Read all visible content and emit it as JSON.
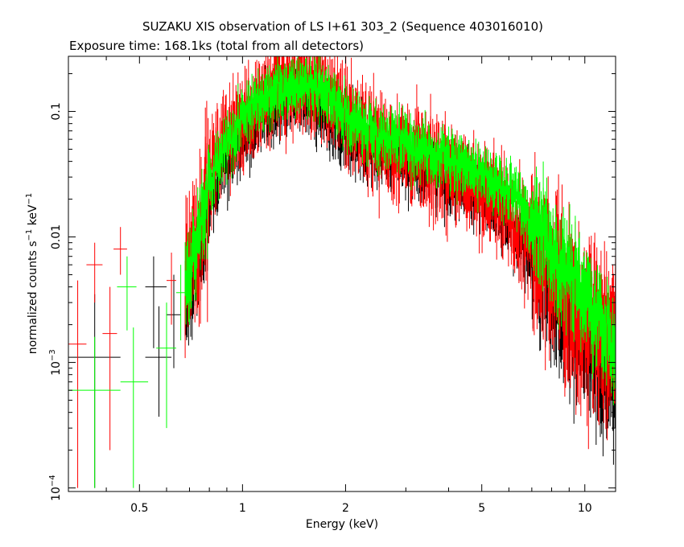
{
  "chart_data": {
    "type": "scatter",
    "title": "SUZAKU XIS observation of LS I+61 303_2 (Sequence 403016010)",
    "subtitle": "Exposure time: 168.1ks (total from all detectors)",
    "xlabel": "Energy (keV)",
    "ylabel_main": "normalized counts s",
    "ylabel_sup1": "−1",
    "ylabel_mid": " keV",
    "ylabel_sup2": "−1",
    "xscale": "log",
    "yscale": "log",
    "xlim": [
      0.31,
      12.3
    ],
    "ylim": [
      9.37e-05,
      0.275
    ],
    "x_ticks": [
      {
        "value": 0.5,
        "label": "0.5"
      },
      {
        "value": 1,
        "label": "1"
      },
      {
        "value": 2,
        "label": "2"
      },
      {
        "value": 5,
        "label": "5"
      },
      {
        "value": 10,
        "label": "10"
      }
    ],
    "y_ticks": [
      {
        "value": 0.1,
        "label": "0.1"
      },
      {
        "value": 0.01,
        "label": "0.01"
      },
      {
        "value": 0.001,
        "label_base": "10",
        "label_exp": "−3"
      },
      {
        "value": 0.0001,
        "label_base": "10",
        "label_exp": "−4"
      }
    ],
    "grid": false,
    "legend": "none",
    "series": [
      {
        "color": "#000000",
        "low_points": [
          {
            "x": 0.37,
            "xerr": [
              0.31,
              0.44
            ],
            "y": 0.0011,
            "yerr": [
              0.0001,
              0.0035
            ]
          },
          {
            "x": 0.55,
            "xerr": [
              0.52,
              0.6
            ],
            "y": 0.004,
            "yerr": [
              0.0013,
              0.007
            ]
          },
          {
            "x": 0.57,
            "xerr": [
              0.52,
              0.62
            ],
            "y": 0.0011,
            "yerr": [
              0.00037,
              0.0028
            ]
          },
          {
            "x": 0.63,
            "xerr": [
              0.6,
              0.66
            ],
            "y": 0.0024,
            "yerr": [
              0.0009,
              0.005
            ]
          }
        ],
        "profile": [
          [
            0.68,
            0.0028
          ],
          [
            0.72,
            0.0055
          ],
          [
            0.76,
            0.01
          ],
          [
            0.8,
            0.018
          ],
          [
            0.85,
            0.03
          ],
          [
            0.9,
            0.045
          ],
          [
            1.0,
            0.07
          ],
          [
            1.1,
            0.09
          ],
          [
            1.2,
            0.11
          ],
          [
            1.3,
            0.13
          ],
          [
            1.45,
            0.145
          ],
          [
            1.6,
            0.13
          ],
          [
            1.75,
            0.1
          ],
          [
            1.9,
            0.085
          ],
          [
            2.1,
            0.07
          ],
          [
            2.5,
            0.055
          ],
          [
            3.0,
            0.045
          ],
          [
            3.5,
            0.038
          ],
          [
            4.0,
            0.032
          ],
          [
            4.5,
            0.028
          ],
          [
            5.0,
            0.024
          ],
          [
            5.5,
            0.02
          ],
          [
            6.0,
            0.014
          ],
          [
            6.5,
            0.01
          ],
          [
            7.0,
            0.007
          ],
          [
            8.0,
            0.004
          ],
          [
            9.0,
            0.0025
          ],
          [
            10.0,
            0.0015
          ],
          [
            11.0,
            0.001
          ],
          [
            12.0,
            0.0008
          ]
        ],
        "scatter_dex": 0.14
      },
      {
        "color": "#ff0000",
        "low_points": [
          {
            "x": 0.33,
            "xerr": [
              0.31,
              0.35
            ],
            "y": 0.0014,
            "yerr": [
              0.0001,
              0.0045
            ]
          },
          {
            "x": 0.37,
            "xerr": [
              0.35,
              0.39
            ],
            "y": 0.006,
            "yerr": [
              0.003,
              0.009
            ]
          },
          {
            "x": 0.41,
            "xerr": [
              0.39,
              0.43
            ],
            "y": 0.0017,
            "yerr": [
              0.0002,
              0.004
            ]
          },
          {
            "x": 0.44,
            "xerr": [
              0.42,
              0.46
            ],
            "y": 0.008,
            "yerr": [
              0.005,
              0.012
            ]
          },
          {
            "x": 0.62,
            "xerr": [
              0.6,
              0.64
            ],
            "y": 0.0045,
            "yerr": [
              0.002,
              0.0075
            ]
          }
        ],
        "profile": [
          [
            0.68,
            0.005
          ],
          [
            0.72,
            0.01
          ],
          [
            0.76,
            0.018
          ],
          [
            0.8,
            0.03
          ],
          [
            0.85,
            0.05
          ],
          [
            0.9,
            0.07
          ],
          [
            1.0,
            0.1
          ],
          [
            1.1,
            0.13
          ],
          [
            1.2,
            0.16
          ],
          [
            1.3,
            0.18
          ],
          [
            1.45,
            0.19
          ],
          [
            1.6,
            0.185
          ],
          [
            1.75,
            0.17
          ],
          [
            1.9,
            0.14
          ],
          [
            2.1,
            0.095
          ],
          [
            2.5,
            0.07
          ],
          [
            3.0,
            0.055
          ],
          [
            3.5,
            0.045
          ],
          [
            4.0,
            0.038
          ],
          [
            4.5,
            0.032
          ],
          [
            5.0,
            0.027
          ],
          [
            5.5,
            0.022
          ],
          [
            6.0,
            0.018
          ],
          [
            6.5,
            0.013
          ],
          [
            7.0,
            0.01
          ],
          [
            8.0,
            0.007
          ],
          [
            9.0,
            0.0045
          ],
          [
            10.0,
            0.003
          ],
          [
            11.0,
            0.0025
          ],
          [
            12.0,
            0.002
          ]
        ],
        "scatter_dex": 0.2
      },
      {
        "color": "#00ff00",
        "low_points": [
          {
            "x": 0.37,
            "xerr": [
              0.31,
              0.44
            ],
            "y": 0.0006,
            "yerr": [
              0.0001,
              0.0016
            ]
          },
          {
            "x": 0.46,
            "xerr": [
              0.43,
              0.49
            ],
            "y": 0.004,
            "yerr": [
              0.0018,
              0.007
            ]
          },
          {
            "x": 0.48,
            "xerr": [
              0.44,
              0.53
            ],
            "y": 0.0007,
            "yerr": [
              0.0001,
              0.0019
            ]
          },
          {
            "x": 0.6,
            "xerr": [
              0.56,
              0.64
            ],
            "y": 0.0013,
            "yerr": [
              0.0003,
              0.003
            ]
          },
          {
            "x": 0.66,
            "xerr": [
              0.64,
              0.68
            ],
            "y": 0.0036,
            "yerr": [
              0.0015,
              0.006
            ]
          }
        ],
        "profile": [
          [
            0.68,
            0.004
          ],
          [
            0.72,
            0.008
          ],
          [
            0.76,
            0.014
          ],
          [
            0.8,
            0.025
          ],
          [
            0.85,
            0.04
          ],
          [
            0.9,
            0.06
          ],
          [
            1.0,
            0.09
          ],
          [
            1.1,
            0.12
          ],
          [
            1.2,
            0.15
          ],
          [
            1.3,
            0.17
          ],
          [
            1.45,
            0.18
          ],
          [
            1.6,
            0.175
          ],
          [
            1.75,
            0.16
          ],
          [
            1.9,
            0.12
          ],
          [
            2.1,
            0.09
          ],
          [
            2.5,
            0.07
          ],
          [
            3.0,
            0.06
          ],
          [
            3.5,
            0.05
          ],
          [
            4.0,
            0.045
          ],
          [
            4.5,
            0.04
          ],
          [
            5.0,
            0.035
          ],
          [
            5.5,
            0.03
          ],
          [
            6.0,
            0.025
          ],
          [
            6.5,
            0.02
          ],
          [
            7.0,
            0.015
          ],
          [
            8.0,
            0.01
          ],
          [
            9.0,
            0.006
          ],
          [
            10.0,
            0.004
          ],
          [
            11.0,
            0.0025
          ],
          [
            12.0,
            0.0015
          ]
        ],
        "scatter_dex": 0.12
      }
    ]
  }
}
